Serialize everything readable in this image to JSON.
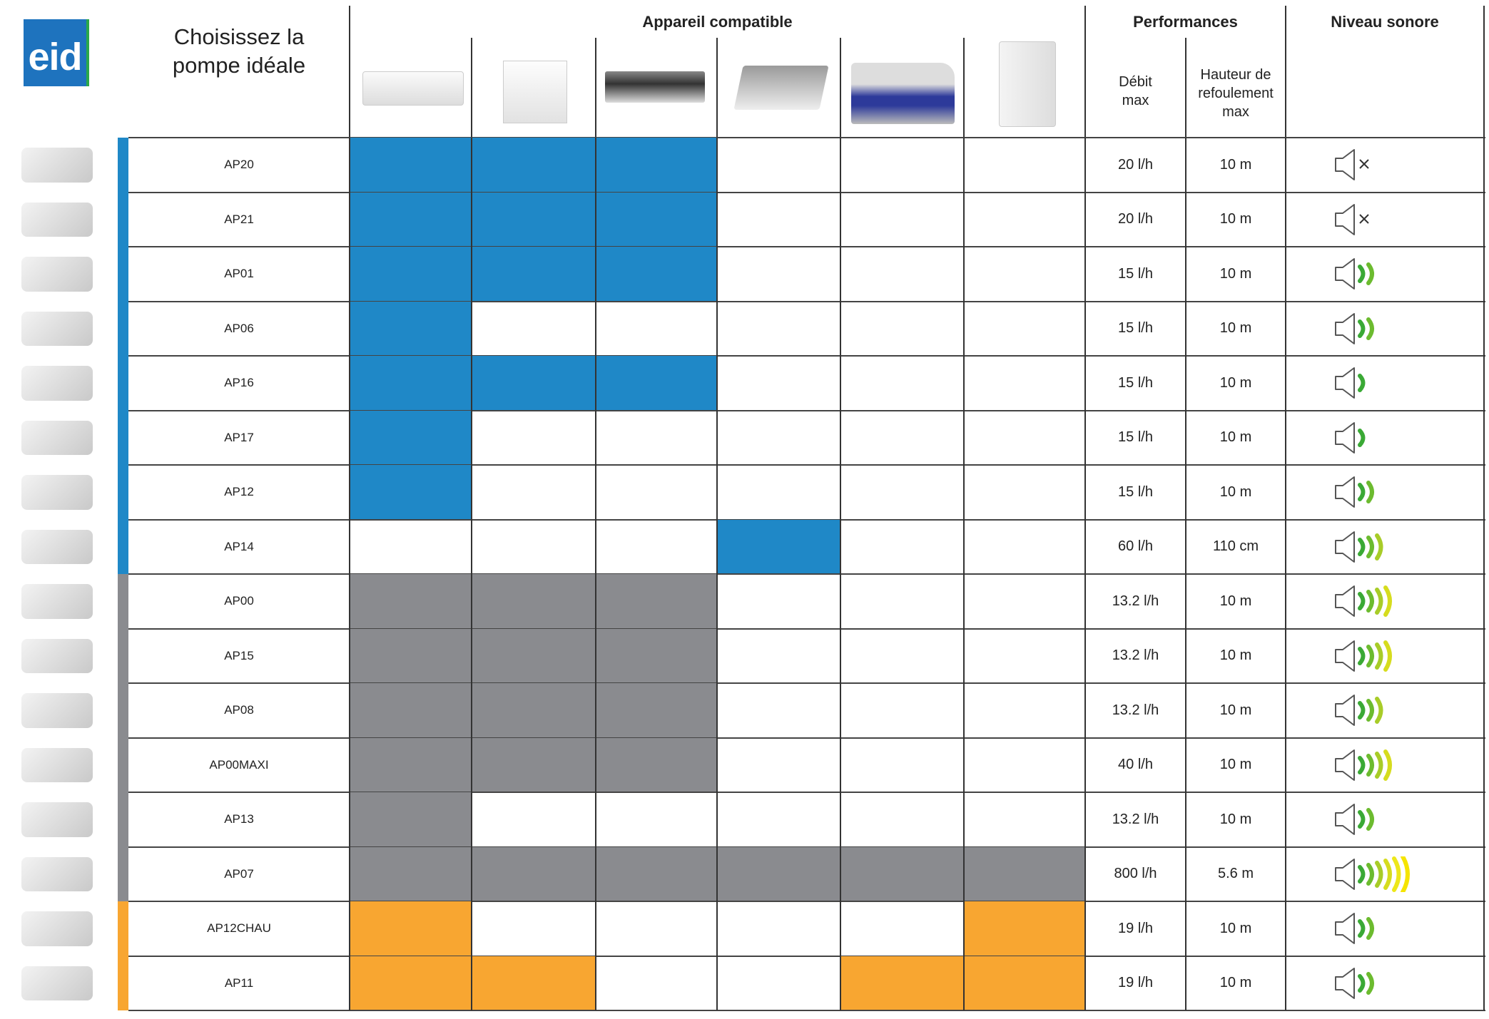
{
  "logo": {
    "text": "eid"
  },
  "title": {
    "line1": "Choisissez la",
    "line2": "pompe idéale"
  },
  "headers": {
    "appareil": "Appareil compatible",
    "performances": "Performances",
    "niveau": "Niveau sonore",
    "debit": [
      "Débit",
      "max"
    ],
    "hauteur": [
      "Hauteur de",
      "refoulement",
      "max"
    ],
    "appliance_icons": [
      "wall-split-ac-icon",
      "floor-console-ac-icon",
      "ducted-ac-icon",
      "cassette-ac-icon",
      "refrigerated-display-case-icon",
      "wall-boiler-icon"
    ]
  },
  "colors": {
    "blue": "#1f88c7",
    "gray": "#8a8b8f",
    "orange": "#f8a631",
    "wave": [
      "#3aa935",
      "#6cbb2f",
      "#a8cc28",
      "#d6dc1e",
      "#ede71a",
      "#f5e400"
    ]
  },
  "rows": [
    {
      "model": "AP20",
      "group": "blue",
      "compat": [
        1,
        1,
        1,
        0,
        0,
        0
      ],
      "debit": "20 l/h",
      "hauteur": "10 m",
      "sound": 0
    },
    {
      "model": "AP21",
      "group": "blue",
      "compat": [
        1,
        1,
        1,
        0,
        0,
        0
      ],
      "debit": "20 l/h",
      "hauteur": "10 m",
      "sound": 0
    },
    {
      "model": "AP01",
      "group": "blue",
      "compat": [
        1,
        1,
        1,
        0,
        0,
        0
      ],
      "debit": "15 l/h",
      "hauteur": "10 m",
      "sound": 2
    },
    {
      "model": "AP06",
      "group": "blue",
      "compat": [
        1,
        0,
        0,
        0,
        0,
        0
      ],
      "debit": "15 l/h",
      "hauteur": "10 m",
      "sound": 2
    },
    {
      "model": "AP16",
      "group": "blue",
      "compat": [
        1,
        1,
        1,
        0,
        0,
        0
      ],
      "debit": "15 l/h",
      "hauteur": "10 m",
      "sound": 1
    },
    {
      "model": "AP17",
      "group": "blue",
      "compat": [
        1,
        0,
        0,
        0,
        0,
        0
      ],
      "debit": "15 l/h",
      "hauteur": "10 m",
      "sound": 1
    },
    {
      "model": "AP12",
      "group": "blue",
      "compat": [
        1,
        0,
        0,
        0,
        0,
        0
      ],
      "debit": "15 l/h",
      "hauteur": "10 m",
      "sound": 2
    },
    {
      "model": "AP14",
      "group": "blue",
      "compat": [
        0,
        0,
        0,
        1,
        0,
        0
      ],
      "debit": "60 l/h",
      "hauteur": "110 cm",
      "sound": 3
    },
    {
      "model": "AP00",
      "group": "gray",
      "compat": [
        1,
        1,
        1,
        0,
        0,
        0
      ],
      "debit": "13.2 l/h",
      "hauteur": "10 m",
      "sound": 4
    },
    {
      "model": "AP15",
      "group": "gray",
      "compat": [
        1,
        1,
        1,
        0,
        0,
        0
      ],
      "debit": "13.2 l/h",
      "hauteur": "10 m",
      "sound": 4
    },
    {
      "model": "AP08",
      "group": "gray",
      "compat": [
        1,
        1,
        1,
        0,
        0,
        0
      ],
      "debit": "13.2 l/h",
      "hauteur": "10 m",
      "sound": 3
    },
    {
      "model": "AP00MAXI",
      "group": "gray",
      "compat": [
        1,
        1,
        1,
        0,
        0,
        0
      ],
      "debit": "40 l/h",
      "hauteur": "10 m",
      "sound": 4
    },
    {
      "model": "AP13",
      "group": "gray",
      "compat": [
        1,
        0,
        0,
        0,
        0,
        0
      ],
      "debit": "13.2 l/h",
      "hauteur": "10 m",
      "sound": 2
    },
    {
      "model": "AP07",
      "group": "gray",
      "compat": [
        1,
        1,
        1,
        1,
        1,
        1
      ],
      "debit": "800 l/h",
      "hauteur": "5.6 m",
      "sound": 6
    },
    {
      "model": "AP12CHAU",
      "group": "orange",
      "compat": [
        1,
        0,
        0,
        0,
        0,
        1
      ],
      "debit": "19 l/h",
      "hauteur": "10 m",
      "sound": 2
    },
    {
      "model": "AP11",
      "group": "orange",
      "compat": [
        1,
        1,
        0,
        0,
        1,
        1
      ],
      "debit": "19 l/h",
      "hauteur": "10 m",
      "sound": 2
    }
  ]
}
